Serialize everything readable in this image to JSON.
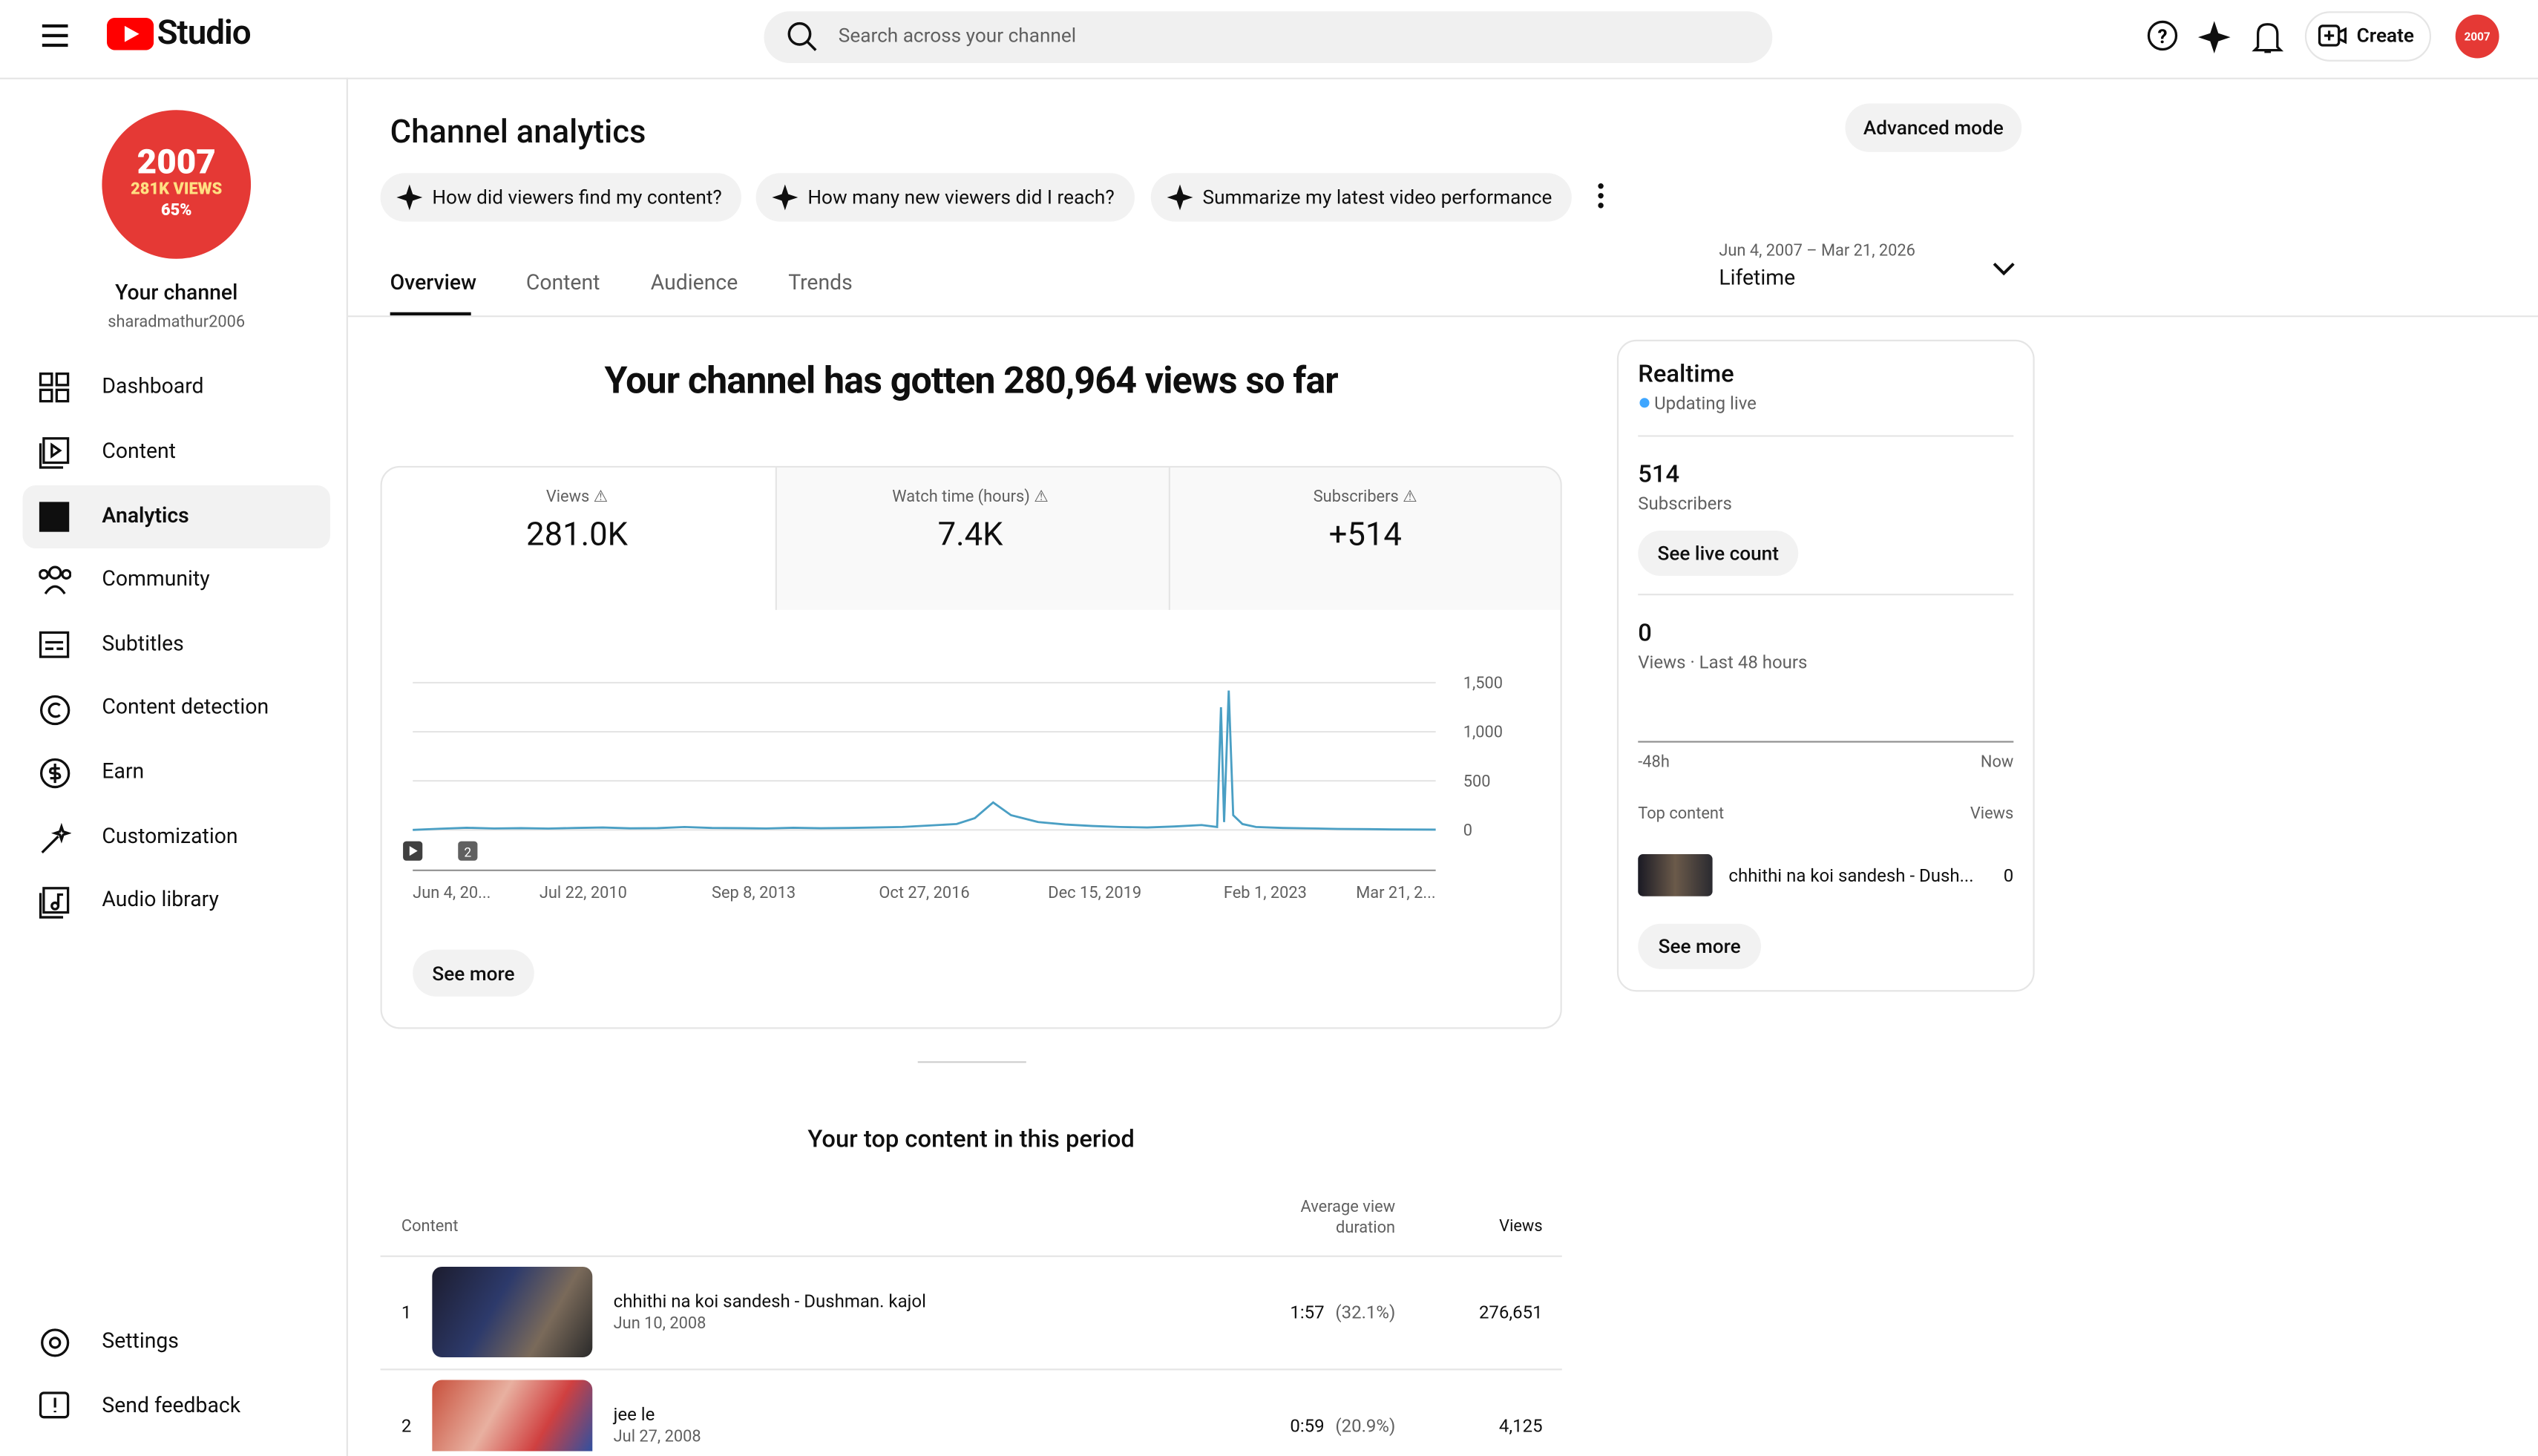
{
  "header": {
    "logo": "Studio",
    "search_placeholder": "Search across your channel",
    "create": "Create",
    "avatar_text": "2007"
  },
  "sidebar": {
    "avatar": {
      "line1": "2007",
      "line2": "281K VIEWS",
      "line3": "65%"
    },
    "channel_label": "Your channel",
    "handle": "sharadmathur2006",
    "nav": [
      "Dashboard",
      "Content",
      "Analytics",
      "Community",
      "Subtitles",
      "Content detection",
      "Earn",
      "Customization",
      "Audio library"
    ],
    "footer": [
      "Settings",
      "Send feedback"
    ]
  },
  "page": {
    "title": "Channel analytics",
    "advanced_mode": "Advanced mode",
    "chips": [
      "How did viewers find my content?",
      "How many new viewers did I reach?",
      "Summarize my latest video performance"
    ],
    "tabs": [
      "Overview",
      "Content",
      "Audience",
      "Trends"
    ],
    "date_range": "Jun 4, 2007 – Mar 21, 2026",
    "period": "Lifetime",
    "headline": "Your channel has gotten 280,964 views so far",
    "metrics": [
      {
        "label": "Views",
        "value": "281.0K"
      },
      {
        "label": "Watch time (hours)",
        "value": "7.4K"
      },
      {
        "label": "Subscribers",
        "value": "+514"
      }
    ],
    "chart_marker": "2",
    "see_more": "See more"
  },
  "chart_data": {
    "type": "line",
    "color": "#4a9fc4",
    "x": [
      "2007-06-04",
      "2007-12-01",
      "2008-06-01",
      "2008-12-01",
      "2009-06-01",
      "2009-12-01",
      "2010-06-01",
      "2010-12-01",
      "2011-06-01",
      "2011-12-01",
      "2012-06-01",
      "2012-12-01",
      "2013-06-01",
      "2013-12-01",
      "2014-06-01",
      "2014-12-01",
      "2015-06-01",
      "2015-12-01",
      "2016-06-01",
      "2016-12-01",
      "2017-06-01",
      "2017-10-01",
      "2018-02-01",
      "2018-06-01",
      "2018-12-01",
      "2019-06-01",
      "2019-12-01",
      "2020-06-01",
      "2020-12-01",
      "2021-06-01",
      "2021-12-01",
      "2022-03-15",
      "2022-04-10",
      "2022-05-01",
      "2022-06-01",
      "2022-07-01",
      "2022-09-01",
      "2022-12-01",
      "2023-06-01",
      "2024-01-01",
      "2024-06-01",
      "2025-01-01",
      "2025-06-01",
      "2026-03-21"
    ],
    "values": [
      0,
      12,
      22,
      15,
      18,
      14,
      20,
      25,
      16,
      18,
      30,
      20,
      18,
      15,
      22,
      17,
      20,
      25,
      30,
      45,
      60,
      120,
      280,
      150,
      80,
      55,
      40,
      30,
      25,
      35,
      50,
      30,
      1250,
      80,
      1420,
      150,
      60,
      30,
      20,
      15,
      10,
      8,
      5,
      3
    ],
    "xlim": [
      "2007-06-04",
      "2026-03-21"
    ],
    "xticks": [
      {
        "value": "2007-06-04",
        "label": "Jun 4, 20..."
      },
      {
        "value": "2010-07-22",
        "label": "Jul 22, 2010"
      },
      {
        "value": "2013-09-08",
        "label": "Sep 8, 2013"
      },
      {
        "value": "2016-10-27",
        "label": "Oct 27, 2016"
      },
      {
        "value": "2019-12-15",
        "label": "Dec 15, 2019"
      },
      {
        "value": "2023-02-01",
        "label": "Feb 1, 2023"
      },
      {
        "value": "2026-03-21",
        "label": "Mar 21, 2..."
      }
    ],
    "ylim": [
      0,
      1500
    ],
    "yticks": [
      0,
      500,
      {
        "value": 1000,
        "label": "1,000"
      },
      {
        "value": 1500,
        "label": "1,500"
      }
    ],
    "grid": true
  },
  "realtime": {
    "title": "Realtime",
    "status": "Updating live",
    "subscribers": "514",
    "subscribers_label": "Subscribers",
    "live_count": "See live count",
    "views": "0",
    "views_label": "Views · Last 48 hours",
    "axis_start": "-48h",
    "axis_end": "Now",
    "top_content": "Top content",
    "views_header": "Views",
    "item_title": "chhithi na koi sandesh - Dush...",
    "item_views": "0",
    "see_more": "See more"
  },
  "top_content": {
    "heading": "Your top content in this period",
    "columns": [
      "Content",
      "Average view duration",
      "Views"
    ],
    "rows": [
      {
        "rank": "1",
        "title": "chhithi na koi sandesh - Dushman. kajol",
        "date": "Jun 10, 2008",
        "duration": "1:57",
        "percent": "(32.1%)",
        "views": "276,651"
      },
      {
        "rank": "2",
        "title": "jee le",
        "date": "Jul 27, 2008",
        "duration": "0:59",
        "percent": "(20.9%)",
        "views": "4,125"
      }
    ]
  }
}
